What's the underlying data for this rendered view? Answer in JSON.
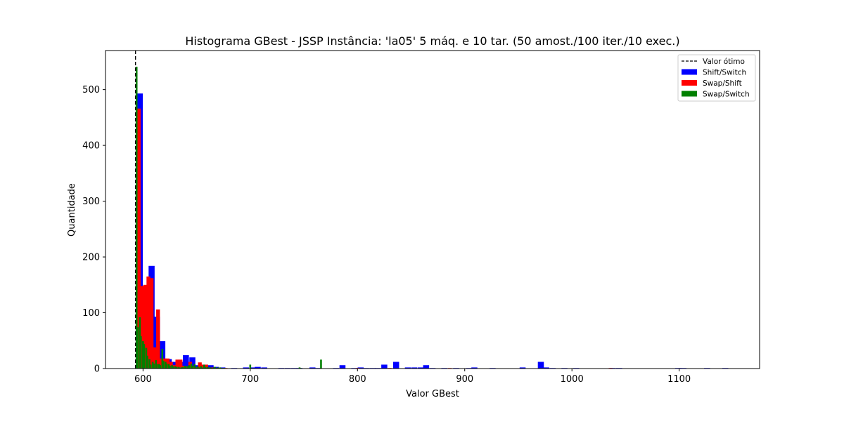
{
  "chart_data": {
    "type": "bar",
    "title": "Histograma GBest - JSSP Instância: 'la05' 5 máq. e 10 tar. (50 amost./100 iter./10 exec.)",
    "xlabel": "Valor GBest",
    "ylabel": "Quantidade",
    "xlim": [
      565,
      1175
    ],
    "ylim": [
      0,
      570
    ],
    "xticks": [
      600,
      700,
      800,
      900,
      1000,
      1100
    ],
    "yticks": [
      0,
      100,
      200,
      300,
      400,
      500
    ],
    "grid": false,
    "legend_position": "top-right",
    "reference_line": {
      "label": "Valor ótimo",
      "x": 593,
      "style": "dashed",
      "color": "#000000"
    },
    "series": [
      {
        "name": "Shift/Switch",
        "color": "#0000ff",
        "bar_width": 5.6,
        "x": [
          597,
          603,
          608,
          613,
          618,
          624,
          629,
          635,
          640,
          646,
          651,
          657,
          663,
          668,
          674,
          685,
          696,
          702,
          707,
          713,
          729,
          735,
          741,
          746,
          758,
          763,
          780,
          786,
          797,
          803,
          808,
          814,
          819,
          825,
          836,
          847,
          853,
          859,
          864,
          870,
          881,
          892,
          904,
          909,
          926,
          954,
          971,
          976,
          982,
          993,
          1004,
          1038,
          1044,
          1099,
          1104,
          1126,
          1143
        ],
        "values": [
          493,
          105,
          184,
          93,
          49,
          17,
          12,
          12,
          24,
          20,
          6,
          6,
          6,
          3,
          2,
          1,
          2,
          2,
          3,
          2,
          1,
          1,
          1,
          1,
          2,
          1,
          1,
          6,
          1,
          2,
          1,
          1,
          1,
          7,
          12,
          2,
          2,
          2,
          6,
          1,
          1,
          1,
          1,
          2,
          1,
          2,
          12,
          2,
          1,
          1,
          1,
          1,
          1,
          1,
          1,
          1,
          1
        ]
      },
      {
        "name": "Swap/Shift",
        "color": "#ff0000",
        "bar_width": 3.5,
        "x": [
          596,
          599,
          602,
          605,
          608,
          611,
          614,
          617,
          620,
          623,
          626,
          629,
          632,
          635,
          638,
          641,
          644,
          647,
          650,
          653,
          656,
          659,
          662,
          665,
          668,
          677,
          800,
          830,
          886,
          1036
        ],
        "values": [
          466,
          148,
          150,
          165,
          162,
          38,
          106,
          18,
          18,
          18,
          12,
          6,
          16,
          16,
          5,
          4,
          12,
          4,
          2,
          11,
          7,
          7,
          2,
          2,
          1,
          1,
          1,
          1,
          1,
          1
        ]
      },
      {
        "name": "Swap/Switch",
        "color": "#008000",
        "bar_width": 1.7,
        "x": [
          594,
          595,
          597,
          598,
          600,
          601,
          603,
          604,
          606,
          607,
          609,
          610,
          612,
          613,
          615,
          616,
          618,
          619,
          621,
          622,
          624,
          625,
          627,
          628,
          630,
          631,
          633,
          634,
          636,
          637,
          639,
          640,
          642,
          643,
          645,
          646,
          648,
          649,
          651,
          652,
          654,
          655,
          657,
          658,
          660,
          661,
          663,
          664,
          666,
          667,
          669,
          670,
          672,
          673,
          675,
          676,
          700,
          746,
          747,
          766
        ],
        "values": [
          541,
          74,
          92,
          58,
          49,
          44,
          37,
          23,
          17,
          7,
          12,
          9,
          15,
          8,
          8,
          6,
          35,
          14,
          12,
          9,
          8,
          5,
          6,
          4,
          4,
          3,
          3,
          2,
          2,
          3,
          5,
          4,
          4,
          6,
          9,
          5,
          8,
          3,
          4,
          2,
          4,
          2,
          7,
          3,
          3,
          2,
          2,
          1,
          2,
          3,
          1,
          2,
          2,
          1,
          1,
          1,
          7,
          2,
          1,
          16
        ]
      }
    ]
  }
}
